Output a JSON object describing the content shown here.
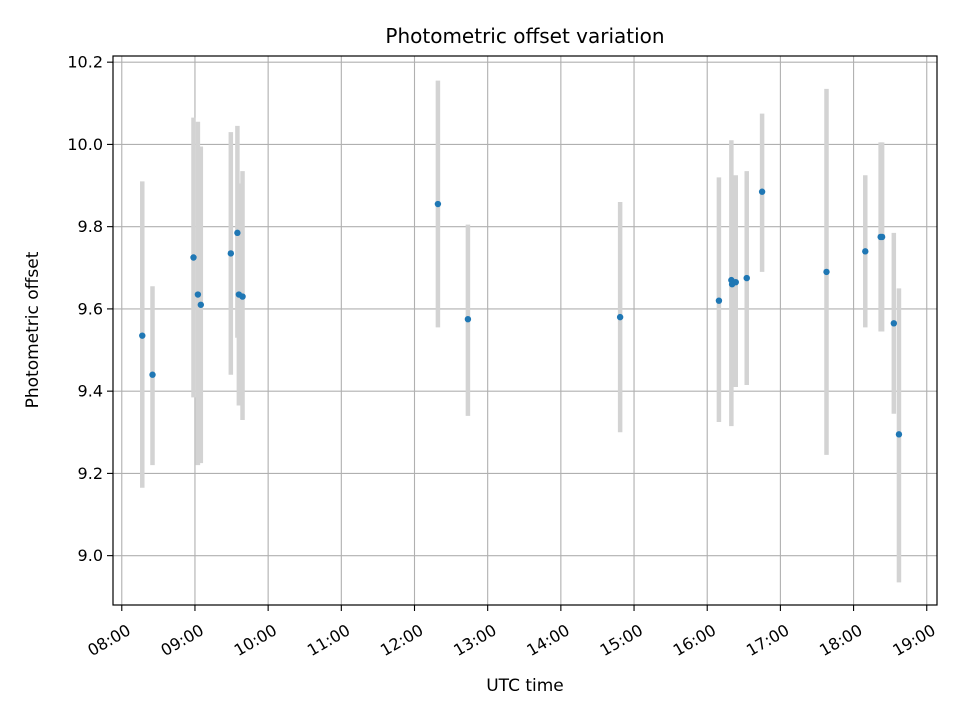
{
  "chart_data": {
    "type": "scatter",
    "title": "Photometric offset variation",
    "xlabel": "UTC time",
    "ylabel": "Photometric offset",
    "x_unit": "hour of day (UTC)",
    "xlim": [
      7.88,
      19.14
    ],
    "ylim": [
      8.88,
      10.215
    ],
    "grid": true,
    "x_ticks": [
      8,
      9,
      10,
      11,
      12,
      13,
      14,
      15,
      16,
      17,
      18,
      19
    ],
    "x_tick_labels": [
      "08:00",
      "09:00",
      "10:00",
      "11:00",
      "12:00",
      "13:00",
      "14:00",
      "15:00",
      "16:00",
      "17:00",
      "18:00",
      "19:00"
    ],
    "y_ticks": [
      9.0,
      9.2,
      9.4,
      9.6,
      9.8,
      10.0,
      10.2
    ],
    "y_tick_labels": [
      "9.0",
      "9.2",
      "9.4",
      "9.6",
      "9.8",
      "10.0",
      "10.2"
    ],
    "marker_color": "#1f77b4",
    "errorbar_color": "#d3d3d3",
    "points": [
      {
        "x": 8.28,
        "y": 9.535,
        "ylow": 9.165,
        "yhigh": 9.91
      },
      {
        "x": 8.42,
        "y": 9.44,
        "ylow": 9.22,
        "yhigh": 9.655
      },
      {
        "x": 8.98,
        "y": 9.725,
        "ylow": 9.385,
        "yhigh": 10.065
      },
      {
        "x": 9.04,
        "y": 9.635,
        "ylow": 9.22,
        "yhigh": 10.055
      },
      {
        "x": 9.08,
        "y": 9.61,
        "ylow": 9.225,
        "yhigh": 9.995
      },
      {
        "x": 9.49,
        "y": 9.735,
        "ylow": 9.44,
        "yhigh": 10.03
      },
      {
        "x": 9.58,
        "y": 9.785,
        "ylow": 9.53,
        "yhigh": 10.045
      },
      {
        "x": 9.6,
        "y": 9.635,
        "ylow": 9.365,
        "yhigh": 9.905
      },
      {
        "x": 9.65,
        "y": 9.63,
        "ylow": 9.33,
        "yhigh": 9.935
      },
      {
        "x": 12.32,
        "y": 9.855,
        "ylow": 9.555,
        "yhigh": 10.155
      },
      {
        "x": 12.73,
        "y": 9.575,
        "ylow": 9.34,
        "yhigh": 9.805
      },
      {
        "x": 14.81,
        "y": 9.58,
        "ylow": 9.3,
        "yhigh": 9.86
      },
      {
        "x": 16.16,
        "y": 9.62,
        "ylow": 9.325,
        "yhigh": 9.92
      },
      {
        "x": 16.33,
        "y": 9.67,
        "ylow": 9.315,
        "yhigh": 10.01
      },
      {
        "x": 16.34,
        "y": 9.66,
        "ylow": 9.49,
        "yhigh": 9.83
      },
      {
        "x": 16.39,
        "y": 9.665,
        "ylow": 9.41,
        "yhigh": 9.925
      },
      {
        "x": 16.54,
        "y": 9.675,
        "ylow": 9.415,
        "yhigh": 9.935
      },
      {
        "x": 16.75,
        "y": 9.885,
        "ylow": 9.69,
        "yhigh": 10.075
      },
      {
        "x": 17.63,
        "y": 9.69,
        "ylow": 9.245,
        "yhigh": 10.135
      },
      {
        "x": 18.16,
        "y": 9.74,
        "ylow": 9.555,
        "yhigh": 9.925
      },
      {
        "x": 18.37,
        "y": 9.775,
        "ylow": 9.545,
        "yhigh": 10.005
      },
      {
        "x": 18.39,
        "y": 9.775,
        "ylow": 9.545,
        "yhigh": 10.005
      },
      {
        "x": 18.55,
        "y": 9.565,
        "ylow": 9.345,
        "yhigh": 9.785
      },
      {
        "x": 18.62,
        "y": 9.295,
        "ylow": 8.935,
        "yhigh": 9.65
      }
    ]
  }
}
